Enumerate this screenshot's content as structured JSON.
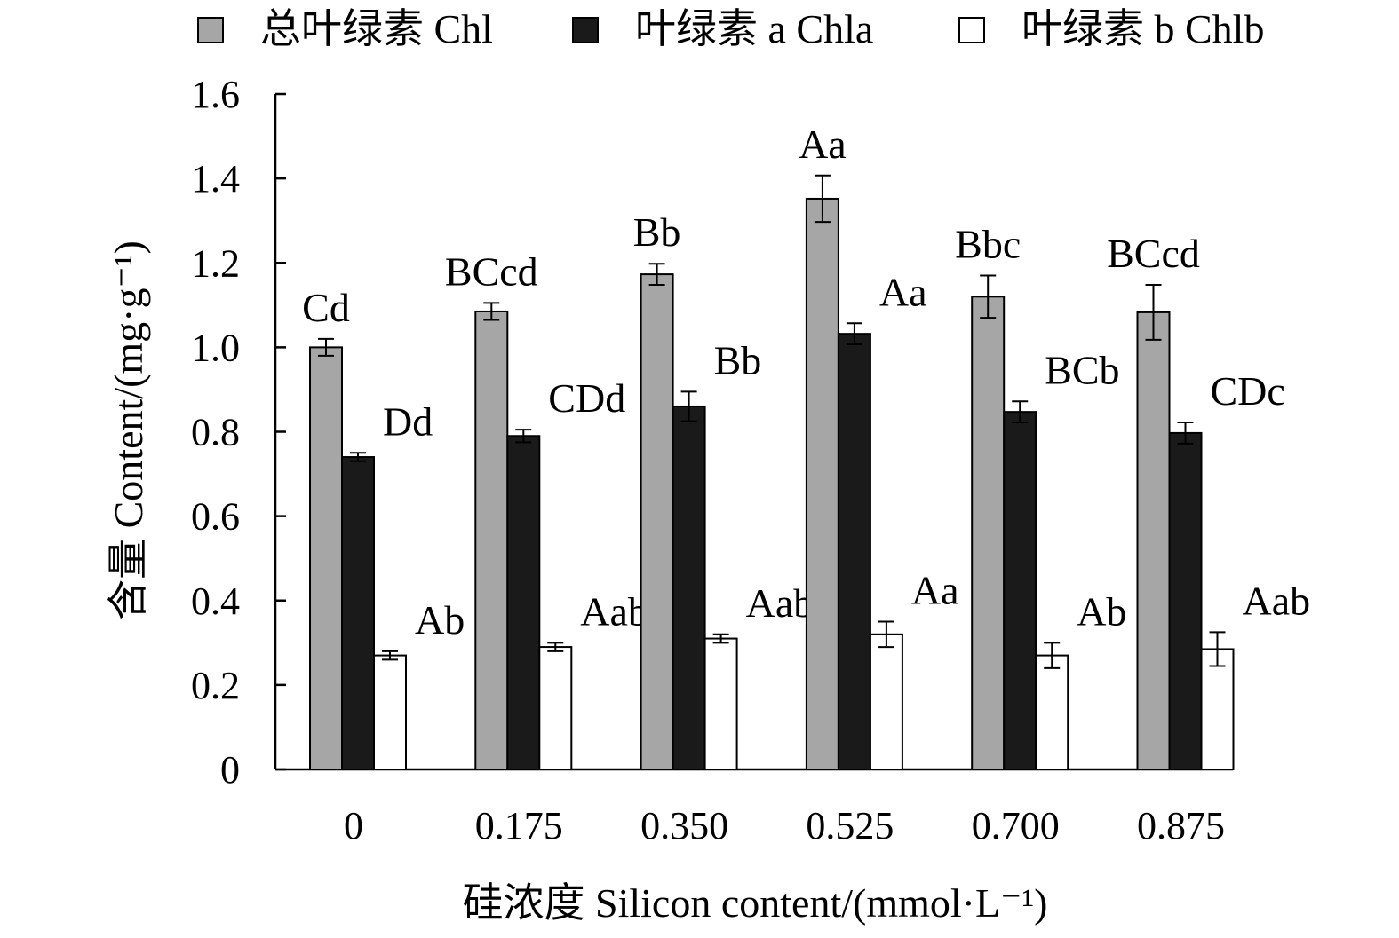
{
  "chart_data": {
    "type": "bar",
    "title": "",
    "xlabel": "硅浓度 Silicon content/(mmol·L⁻¹)",
    "ylabel": "含量 Content/(mg·g⁻¹)",
    "ylim": [
      0,
      1.6
    ],
    "yticks": [
      "0",
      "0.2",
      "0.4",
      "0.6",
      "0.8",
      "1.0",
      "1.2",
      "1.4",
      "1.6"
    ],
    "categories": [
      "0",
      "0.175",
      "0.350",
      "0.525",
      "0.700",
      "0.875"
    ],
    "legend_position": "top",
    "series": [
      {
        "name": "总叶绿素 Chl",
        "color": "#a6a6a6",
        "values": [
          1.0,
          1.085,
          1.173,
          1.352,
          1.12,
          1.083
        ],
        "errors": [
          0.02,
          0.02,
          0.025,
          0.055,
          0.05,
          0.065
        ],
        "labels": [
          "Cd",
          "BCcd",
          "Bb",
          "Aa",
          "Bbc",
          "BCcd"
        ]
      },
      {
        "name": "叶绿素 a Chla",
        "color": "#1a1a1a",
        "values": [
          0.74,
          0.79,
          0.86,
          1.032,
          0.847,
          0.797
        ],
        "errors": [
          0.01,
          0.015,
          0.035,
          0.025,
          0.025,
          0.025
        ],
        "labels": [
          "Dd",
          "CDd",
          "Bb",
          "Aa",
          "BCb",
          "CDc"
        ]
      },
      {
        "name": "叶绿素 b Chlb",
        "color": "#ffffff",
        "values": [
          0.27,
          0.29,
          0.31,
          0.32,
          0.27,
          0.285
        ],
        "errors": [
          0.01,
          0.01,
          0.01,
          0.03,
          0.03,
          0.04
        ],
        "labels": [
          "Ab",
          "Aab",
          "Aab",
          "Aa",
          "Ab",
          "Aab"
        ]
      }
    ]
  }
}
